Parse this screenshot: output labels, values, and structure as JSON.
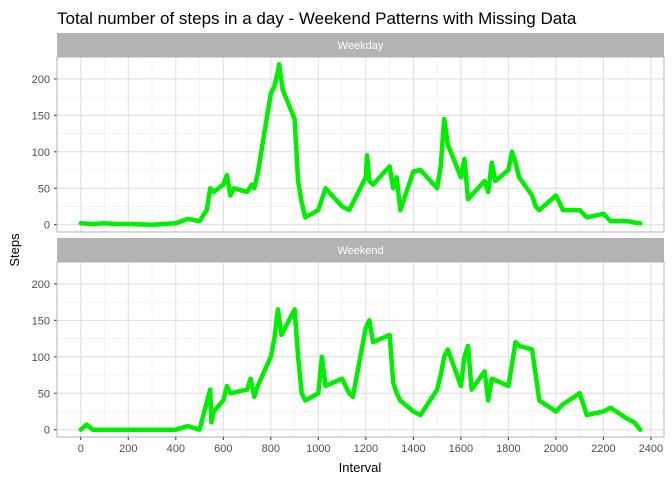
{
  "chart_data": {
    "type": "line",
    "title": "Total number of steps in a day - Weekend Patterns with Missing Data",
    "xlabel": "Interval",
    "ylabel": "Steps",
    "xlim": [
      -100,
      2455
    ],
    "ylim": [
      -10,
      230
    ],
    "x_ticks": [
      0,
      200,
      400,
      600,
      800,
      1000,
      1200,
      1400,
      1600,
      1800,
      2000,
      2200,
      2400
    ],
    "y_ticks": [
      0,
      50,
      100,
      150,
      200
    ],
    "grid": true,
    "line_color": "#00EE00",
    "facets": [
      {
        "label": "Weekday",
        "x": [
          0,
          50,
          100,
          150,
          200,
          300,
          400,
          450,
          500,
          530,
          545,
          560,
          600,
          615,
          630,
          645,
          700,
          720,
          730,
          745,
          800,
          815,
          830,
          835,
          840,
          850,
          900,
          915,
          930,
          945,
          1000,
          1030,
          1100,
          1130,
          1200,
          1205,
          1215,
          1230,
          1300,
          1315,
          1330,
          1345,
          1400,
          1430,
          1500,
          1515,
          1530,
          1545,
          1600,
          1615,
          1630,
          1700,
          1715,
          1730,
          1745,
          1800,
          1815,
          1830,
          1845,
          1900,
          1915,
          1930,
          2000,
          2030,
          2100,
          2130,
          2200,
          2230,
          2300,
          2330,
          2355
        ],
        "y": [
          2,
          1,
          2,
          1,
          1,
          0,
          2,
          8,
          5,
          20,
          50,
          45,
          55,
          68,
          40,
          50,
          45,
          55,
          50,
          70,
          180,
          190,
          210,
          220,
          208,
          185,
          145,
          60,
          30,
          10,
          20,
          50,
          25,
          20,
          65,
          95,
          60,
          55,
          80,
          50,
          65,
          20,
          73,
          75,
          50,
          80,
          145,
          110,
          65,
          90,
          35,
          60,
          45,
          85,
          60,
          75,
          100,
          85,
          65,
          40,
          25,
          20,
          40,
          20,
          20,
          10,
          15,
          5,
          5,
          3,
          2
        ]
      },
      {
        "label": "Weekend",
        "x": [
          0,
          25,
          50,
          100,
          200,
          300,
          400,
          450,
          500,
          545,
          550,
          560,
          600,
          615,
          630,
          700,
          715,
          730,
          745,
          800,
          815,
          830,
          845,
          900,
          915,
          930,
          945,
          1000,
          1015,
          1030,
          1100,
          1130,
          1145,
          1200,
          1215,
          1230,
          1300,
          1315,
          1330,
          1345,
          1400,
          1430,
          1500,
          1515,
          1530,
          1545,
          1600,
          1615,
          1630,
          1645,
          1700,
          1715,
          1730,
          1800,
          1830,
          1845,
          1900,
          1930,
          2000,
          2030,
          2100,
          2130,
          2200,
          2230,
          2300,
          2330,
          2355
        ],
        "y": [
          0,
          7,
          0,
          0,
          0,
          0,
          0,
          5,
          0,
          55,
          10,
          25,
          40,
          60,
          50,
          55,
          70,
          45,
          60,
          100,
          125,
          165,
          130,
          165,
          100,
          50,
          40,
          50,
          100,
          60,
          70,
          50,
          45,
          140,
          150,
          120,
          130,
          65,
          50,
          40,
          25,
          20,
          55,
          75,
          100,
          110,
          60,
          100,
          115,
          55,
          80,
          40,
          70,
          60,
          120,
          115,
          110,
          40,
          25,
          35,
          50,
          20,
          25,
          30,
          15,
          10,
          0
        ]
      }
    ]
  }
}
